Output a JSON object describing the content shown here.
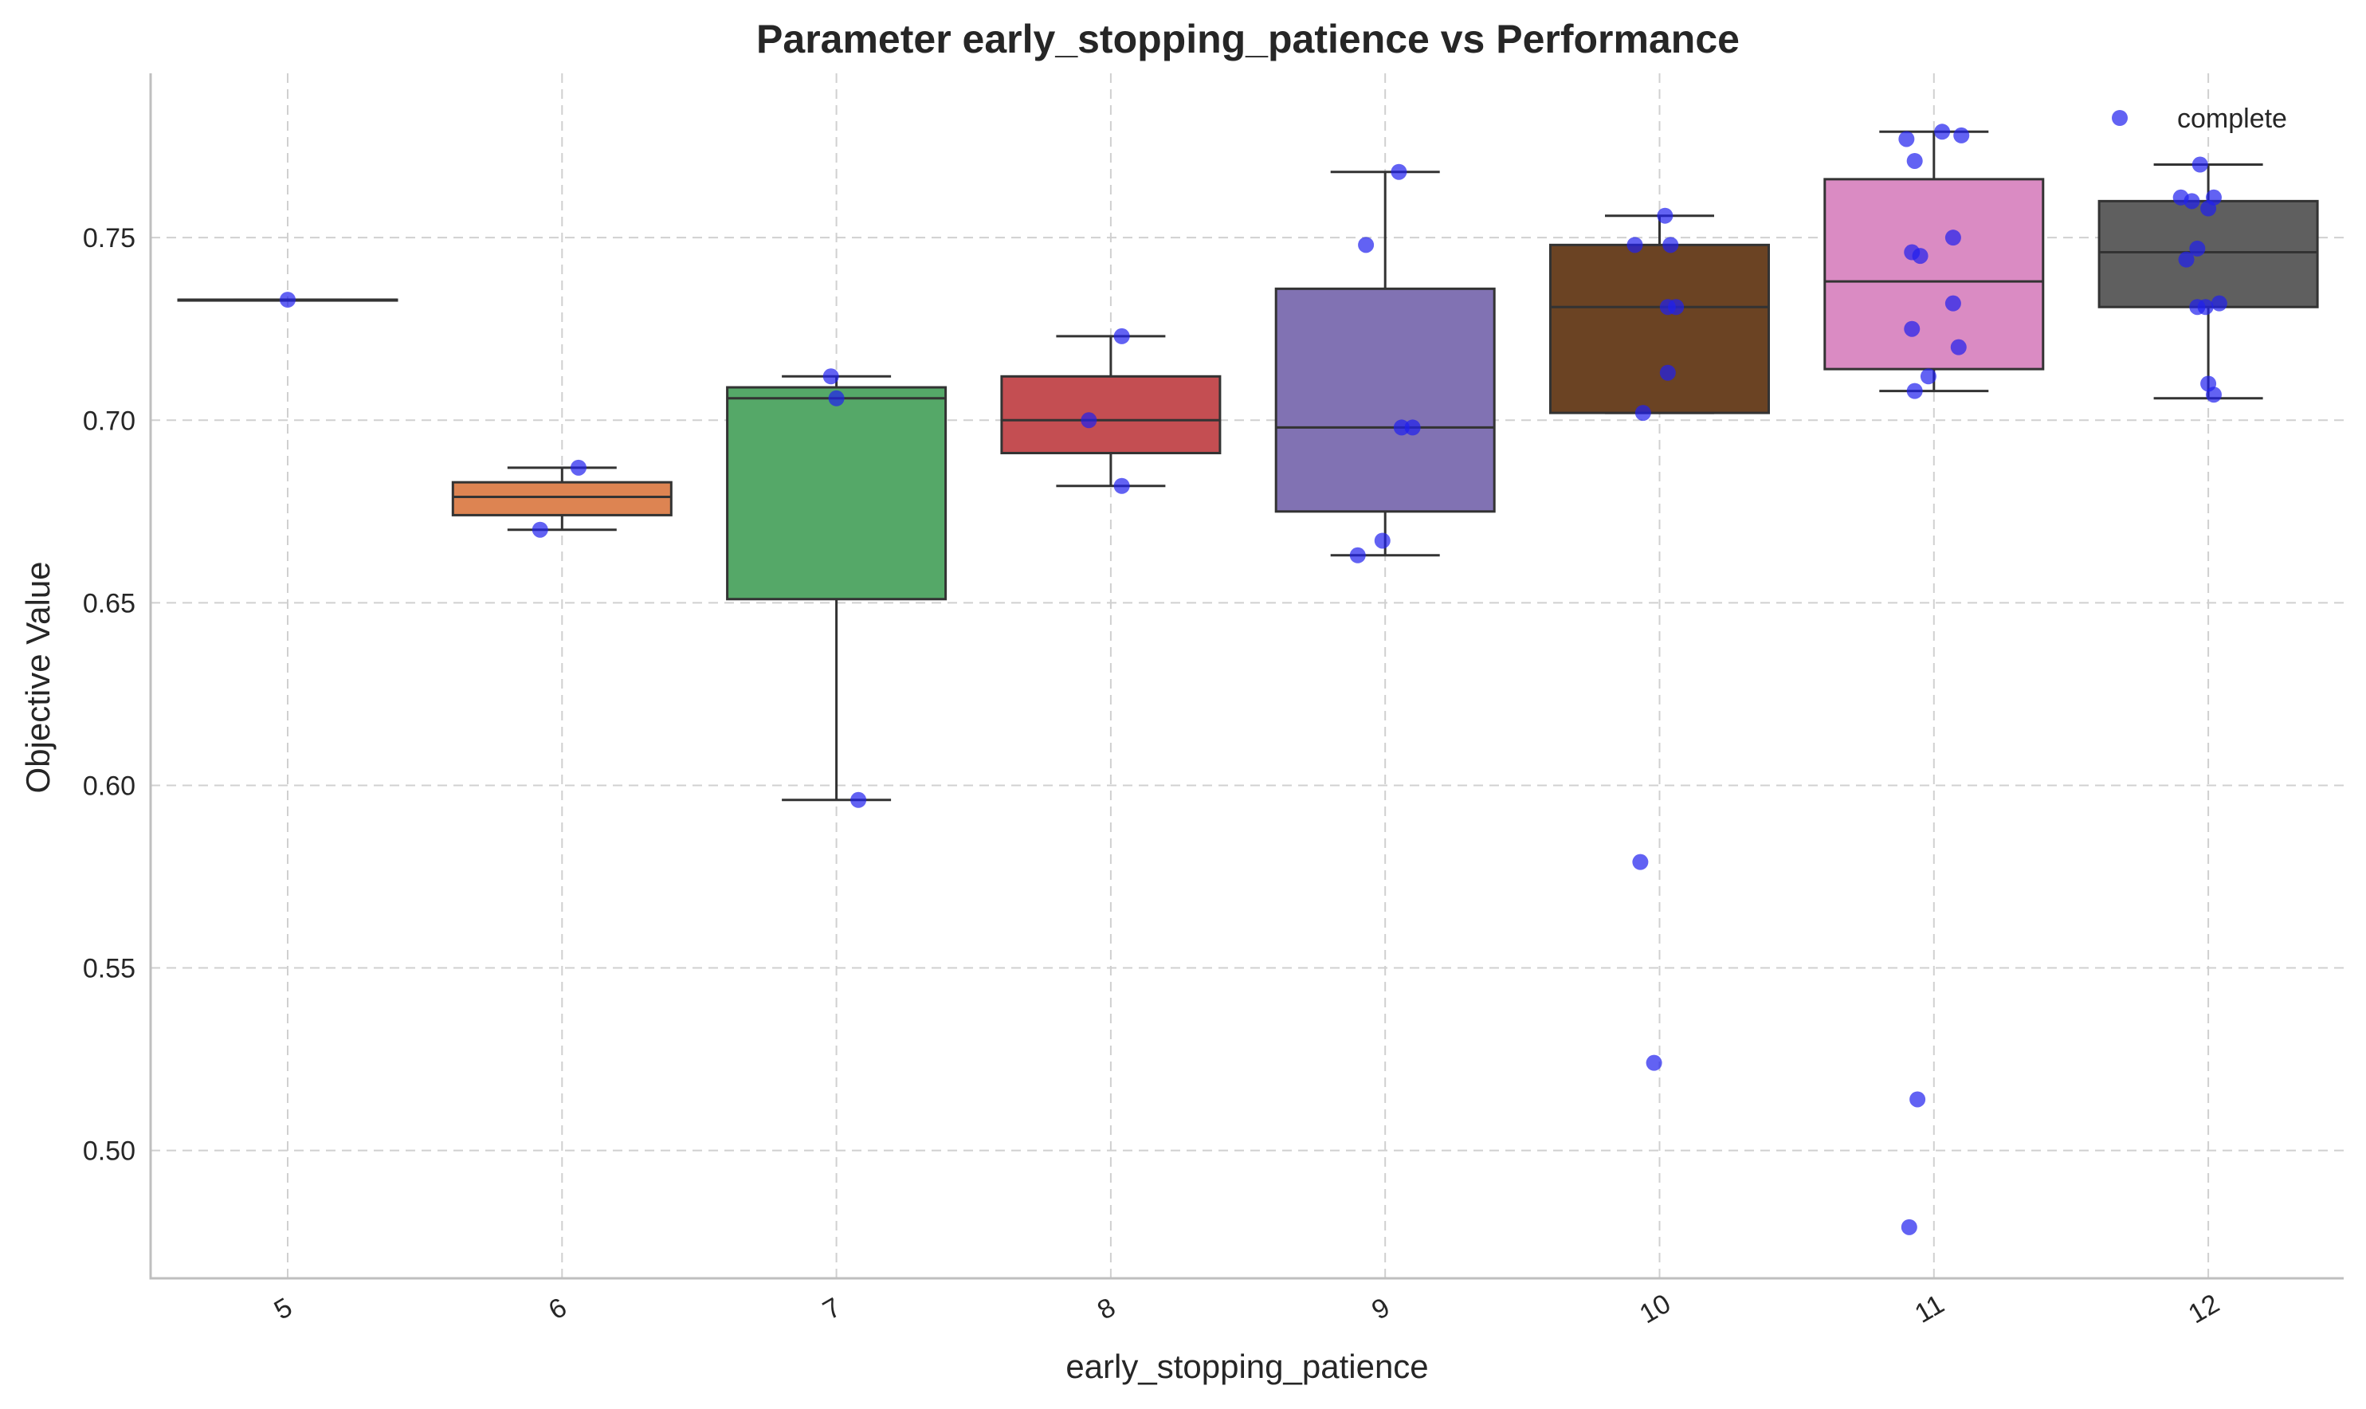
{
  "chart_data": {
    "type": "box",
    "title": "Parameter early_stopping_patience vs Performance",
    "xlabel": "early_stopping_patience",
    "ylabel": "Objective Value",
    "categories": [
      "5",
      "6",
      "7",
      "8",
      "9",
      "10",
      "11",
      "12"
    ],
    "ylim": [
      0.465,
      0.795
    ],
    "yticks": [
      0.5,
      0.55,
      0.6,
      0.65,
      0.7,
      0.75
    ],
    "ytick_labels": [
      "0.50",
      "0.55",
      "0.60",
      "0.65",
      "0.70",
      "0.75"
    ],
    "grid": true,
    "legend": {
      "position": "top-right",
      "entries": [
        "complete"
      ]
    },
    "box_colors": [
      "#4c72b0",
      "#dd8452",
      "#55a868",
      "#c44e52",
      "#8172b3",
      "#6b4323",
      "#da8bc3",
      "#5f5f5f"
    ],
    "point_color": "#2020ee",
    "boxes": [
      {
        "category": "5",
        "q1": 0.733,
        "median": 0.733,
        "q3": 0.733,
        "whisker_low": 0.733,
        "whisker_high": 0.733
      },
      {
        "category": "6",
        "q1": 0.674,
        "median": 0.679,
        "q3": 0.683,
        "whisker_low": 0.67,
        "whisker_high": 0.687
      },
      {
        "category": "7",
        "q1": 0.651,
        "median": 0.706,
        "q3": 0.709,
        "whisker_low": 0.596,
        "whisker_high": 0.712
      },
      {
        "category": "8",
        "q1": 0.691,
        "median": 0.7,
        "q3": 0.712,
        "whisker_low": 0.682,
        "whisker_high": 0.723
      },
      {
        "category": "9",
        "q1": 0.675,
        "median": 0.698,
        "q3": 0.736,
        "whisker_low": 0.663,
        "whisker_high": 0.768
      },
      {
        "category": "10",
        "q1": 0.702,
        "median": 0.731,
        "q3": 0.748,
        "whisker_low": 0.702,
        "whisker_high": 0.756
      },
      {
        "category": "11",
        "q1": 0.714,
        "median": 0.738,
        "q3": 0.766,
        "whisker_low": 0.708,
        "whisker_high": 0.779
      },
      {
        "category": "12",
        "q1": 0.731,
        "median": 0.746,
        "q3": 0.76,
        "whisker_low": 0.706,
        "whisker_high": 0.77
      }
    ],
    "points": [
      {
        "series": "complete",
        "category": "5",
        "jitter": 0.0,
        "value": 0.733
      },
      {
        "series": "complete",
        "category": "6",
        "jitter": -0.08,
        "value": 0.67
      },
      {
        "series": "complete",
        "category": "6",
        "jitter": 0.06,
        "value": 0.687
      },
      {
        "series": "complete",
        "category": "7",
        "jitter": -0.02,
        "value": 0.712
      },
      {
        "series": "complete",
        "category": "7",
        "jitter": 0.0,
        "value": 0.706
      },
      {
        "series": "complete",
        "category": "7",
        "jitter": 0.08,
        "value": 0.596
      },
      {
        "series": "complete",
        "category": "8",
        "jitter": 0.04,
        "value": 0.723
      },
      {
        "series": "complete",
        "category": "8",
        "jitter": -0.08,
        "value": 0.7
      },
      {
        "series": "complete",
        "category": "8",
        "jitter": 0.04,
        "value": 0.682
      },
      {
        "series": "complete",
        "category": "9",
        "jitter": 0.05,
        "value": 0.768
      },
      {
        "series": "complete",
        "category": "9",
        "jitter": -0.07,
        "value": 0.748
      },
      {
        "series": "complete",
        "category": "9",
        "jitter": 0.06,
        "value": 0.698
      },
      {
        "series": "complete",
        "category": "9",
        "jitter": 0.1,
        "value": 0.698
      },
      {
        "series": "complete",
        "category": "9",
        "jitter": -0.1,
        "value": 0.663
      },
      {
        "series": "complete",
        "category": "9",
        "jitter": -0.01,
        "value": 0.667
      },
      {
        "series": "complete",
        "category": "10",
        "jitter": 0.02,
        "value": 0.756
      },
      {
        "series": "complete",
        "category": "10",
        "jitter": -0.09,
        "value": 0.748
      },
      {
        "series": "complete",
        "category": "10",
        "jitter": 0.04,
        "value": 0.748
      },
      {
        "series": "complete",
        "category": "10",
        "jitter": 0.03,
        "value": 0.731
      },
      {
        "series": "complete",
        "category": "10",
        "jitter": 0.06,
        "value": 0.731
      },
      {
        "series": "complete",
        "category": "10",
        "jitter": 0.03,
        "value": 0.713
      },
      {
        "series": "complete",
        "category": "10",
        "jitter": -0.06,
        "value": 0.702
      },
      {
        "series": "complete",
        "category": "10",
        "jitter": -0.07,
        "value": 0.579
      },
      {
        "series": "complete",
        "category": "10",
        "jitter": -0.02,
        "value": 0.524
      },
      {
        "series": "complete",
        "category": "11",
        "jitter": 0.03,
        "value": 0.779
      },
      {
        "series": "complete",
        "category": "11",
        "jitter": -0.1,
        "value": 0.777
      },
      {
        "series": "complete",
        "category": "11",
        "jitter": 0.1,
        "value": 0.778
      },
      {
        "series": "complete",
        "category": "11",
        "jitter": -0.07,
        "value": 0.771
      },
      {
        "series": "complete",
        "category": "11",
        "jitter": 0.07,
        "value": 0.75
      },
      {
        "series": "complete",
        "category": "11",
        "jitter": -0.08,
        "value": 0.746
      },
      {
        "series": "complete",
        "category": "11",
        "jitter": -0.05,
        "value": 0.745
      },
      {
        "series": "complete",
        "category": "11",
        "jitter": 0.07,
        "value": 0.732
      },
      {
        "series": "complete",
        "category": "11",
        "jitter": -0.08,
        "value": 0.725
      },
      {
        "series": "complete",
        "category": "11",
        "jitter": 0.09,
        "value": 0.72
      },
      {
        "series": "complete",
        "category": "11",
        "jitter": -0.02,
        "value": 0.712
      },
      {
        "series": "complete",
        "category": "11",
        "jitter": -0.07,
        "value": 0.708
      },
      {
        "series": "complete",
        "category": "11",
        "jitter": -0.06,
        "value": 0.514
      },
      {
        "series": "complete",
        "category": "11",
        "jitter": -0.09,
        "value": 0.479
      },
      {
        "series": "complete",
        "category": "12",
        "jitter": -0.03,
        "value": 0.77
      },
      {
        "series": "complete",
        "category": "12",
        "jitter": -0.1,
        "value": 0.761
      },
      {
        "series": "complete",
        "category": "12",
        "jitter": 0.02,
        "value": 0.761
      },
      {
        "series": "complete",
        "category": "12",
        "jitter": -0.06,
        "value": 0.76
      },
      {
        "series": "complete",
        "category": "12",
        "jitter": 0.0,
        "value": 0.758
      },
      {
        "series": "complete",
        "category": "12",
        "jitter": -0.04,
        "value": 0.747
      },
      {
        "series": "complete",
        "category": "12",
        "jitter": -0.08,
        "value": 0.744
      },
      {
        "series": "complete",
        "category": "12",
        "jitter": -0.04,
        "value": 0.731
      },
      {
        "series": "complete",
        "category": "12",
        "jitter": 0.04,
        "value": 0.732
      },
      {
        "series": "complete",
        "category": "12",
        "jitter": -0.01,
        "value": 0.731
      },
      {
        "series": "complete",
        "category": "12",
        "jitter": 0.0,
        "value": 0.71
      },
      {
        "series": "complete",
        "category": "12",
        "jitter": 0.02,
        "value": 0.707
      }
    ]
  }
}
